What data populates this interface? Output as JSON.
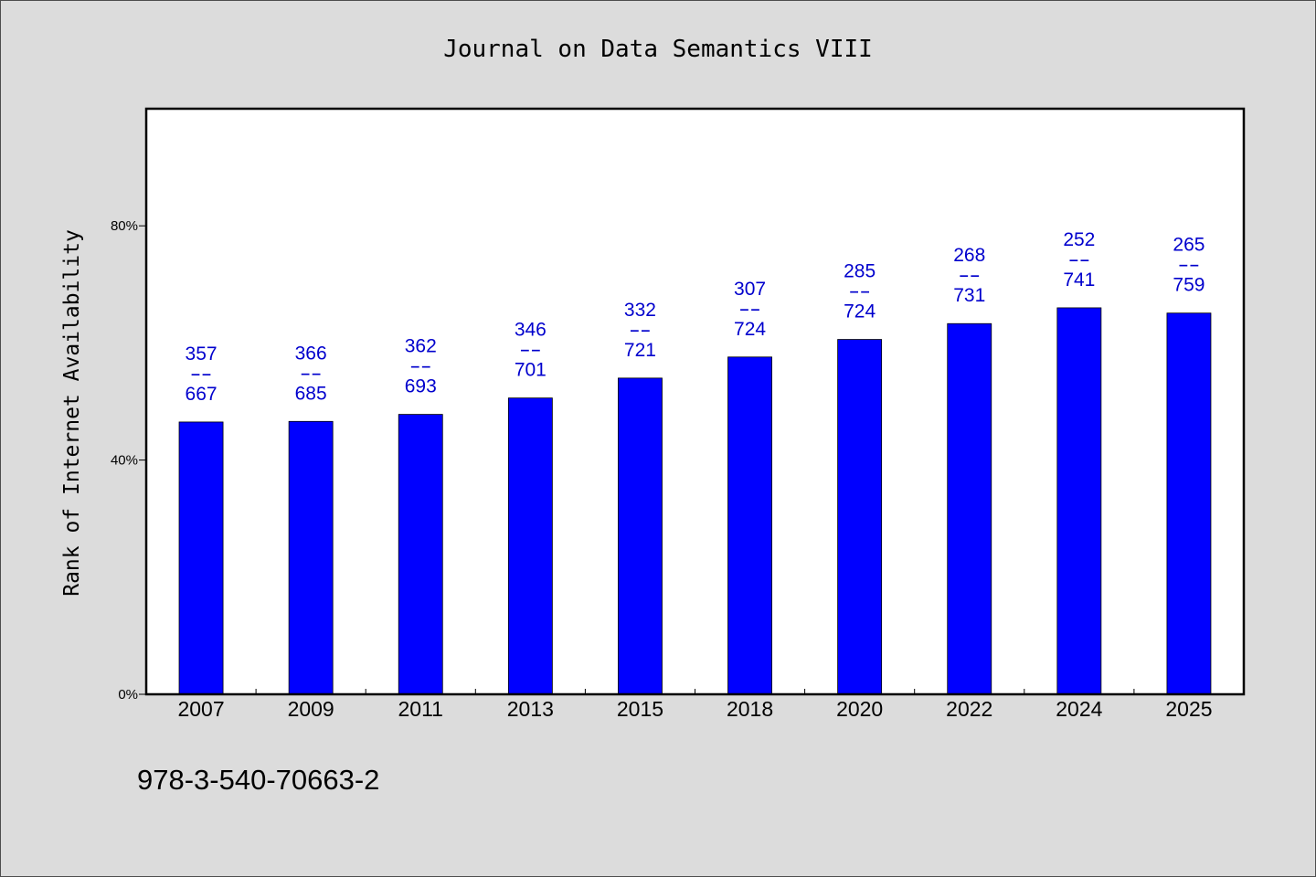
{
  "chart_data": {
    "type": "bar",
    "title": "Journal on Data Semantics VIII",
    "ylabel": "Rank of Internet Availability",
    "categories": [
      "2007",
      "2009",
      "2011",
      "2013",
      "2015",
      "2018",
      "2020",
      "2022",
      "2024",
      "2025"
    ],
    "values": [
      46.5,
      46.6,
      47.8,
      50.6,
      54.0,
      57.6,
      60.6,
      63.3,
      66.0,
      65.1
    ],
    "data_labels": [
      [
        "357",
        "--",
        "667"
      ],
      [
        "366",
        "--",
        "685"
      ],
      [
        "362",
        "--",
        "693"
      ],
      [
        "346",
        "--",
        "701"
      ],
      [
        "332",
        "--",
        "721"
      ],
      [
        "307",
        "--",
        "724"
      ],
      [
        "285",
        "--",
        "724"
      ],
      [
        "268",
        "--",
        "731"
      ],
      [
        "252",
        "--",
        "741"
      ],
      [
        "265",
        "--",
        "759"
      ]
    ],
    "ylim": [
      0,
      100
    ],
    "yticks": [
      0,
      40,
      80
    ],
    "ytick_labels": [
      "0%",
      "40%",
      "80%"
    ],
    "grid": false,
    "legend": "none",
    "bar_color": "#0000ff",
    "label_color": "#0000cd"
  },
  "footer": {
    "isbn": "978-3-540-70663-2"
  },
  "colors": {
    "background": "#dcdcdc",
    "plot_background": "#ffffff"
  }
}
